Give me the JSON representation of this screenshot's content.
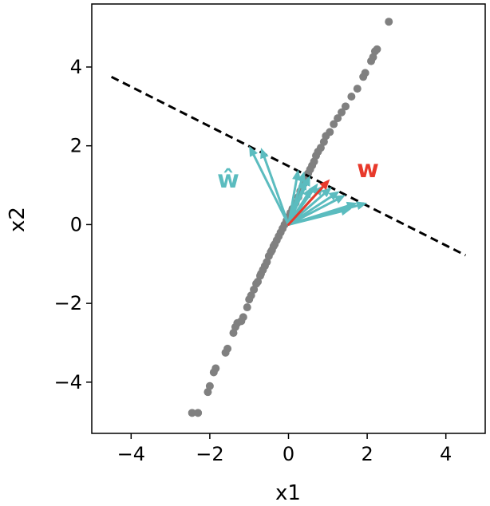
{
  "chart_data": {
    "type": "scatter",
    "xlabel": "x1",
    "ylabel": "x2",
    "xlim": [
      -5,
      5
    ],
    "ylim": [
      -5.3,
      5.6
    ],
    "xticks": [
      -4,
      -2,
      0,
      2,
      4
    ],
    "yticks": [
      -4,
      -2,
      0,
      2,
      4
    ],
    "xtick_labels": [
      "−4",
      "−2",
      "0",
      "2",
      "4"
    ],
    "ytick_labels": [
      "−4",
      "−2",
      "0",
      "2",
      "4"
    ],
    "grid": false,
    "colors": {
      "points": "#808080",
      "w_hat": "#5bbcbf",
      "w": "#e8392b",
      "line": "#000000"
    },
    "annotations": {
      "w_hat": "ŵ",
      "w": "w"
    },
    "points": [
      [
        -2.45,
        -4.78
      ],
      [
        -2.3,
        -4.78
      ],
      [
        -2.05,
        -4.25
      ],
      [
        -2.0,
        -4.1
      ],
      [
        -1.9,
        -3.75
      ],
      [
        -1.85,
        -3.65
      ],
      [
        -1.6,
        -3.25
      ],
      [
        -1.55,
        -3.15
      ],
      [
        -1.4,
        -2.75
      ],
      [
        -1.35,
        -2.6
      ],
      [
        -1.3,
        -2.5
      ],
      [
        -1.2,
        -2.45
      ],
      [
        -1.15,
        -2.35
      ],
      [
        -1.05,
        -2.1
      ],
      [
        -1.0,
        -1.9
      ],
      [
        -0.95,
        -1.8
      ],
      [
        -0.88,
        -1.65
      ],
      [
        -0.82,
        -1.5
      ],
      [
        -0.78,
        -1.45
      ],
      [
        -0.72,
        -1.3
      ],
      [
        -0.7,
        -1.25
      ],
      [
        -0.65,
        -1.15
      ],
      [
        -0.6,
        -1.05
      ],
      [
        -0.55,
        -0.95
      ],
      [
        -0.5,
        -0.8
      ],
      [
        -0.45,
        -0.7
      ],
      [
        -0.42,
        -0.65
      ],
      [
        -0.38,
        -0.55
      ],
      [
        -0.35,
        -0.5
      ],
      [
        -0.3,
        -0.4
      ],
      [
        -0.25,
        -0.3
      ],
      [
        -0.2,
        -0.2
      ],
      [
        -0.15,
        -0.1
      ],
      [
        -0.1,
        0.0
      ],
      [
        -0.05,
        0.1
      ],
      [
        0.0,
        0.2
      ],
      [
        0.05,
        0.3
      ],
      [
        0.1,
        0.4
      ],
      [
        0.18,
        0.55
      ],
      [
        0.25,
        0.7
      ],
      [
        0.3,
        0.85
      ],
      [
        0.35,
        0.95
      ],
      [
        0.4,
        1.05
      ],
      [
        0.45,
        1.15
      ],
      [
        0.5,
        1.3
      ],
      [
        0.55,
        1.4
      ],
      [
        0.6,
        1.5
      ],
      [
        0.65,
        1.6
      ],
      [
        0.7,
        1.75
      ],
      [
        0.75,
        1.85
      ],
      [
        0.82,
        1.95
      ],
      [
        0.9,
        2.1
      ],
      [
        0.95,
        2.25
      ],
      [
        1.05,
        2.35
      ],
      [
        1.15,
        2.55
      ],
      [
        1.25,
        2.7
      ],
      [
        1.35,
        2.85
      ],
      [
        1.45,
        3.0
      ],
      [
        1.6,
        3.25
      ],
      [
        1.75,
        3.45
      ],
      [
        1.9,
        3.75
      ],
      [
        1.95,
        3.85
      ],
      [
        2.1,
        4.15
      ],
      [
        2.15,
        4.25
      ],
      [
        2.2,
        4.4
      ],
      [
        2.25,
        4.45
      ],
      [
        2.55,
        5.15
      ]
    ],
    "dashed_line": [
      [
        -4.5,
        3.75
      ],
      [
        4.5,
        -0.78
      ]
    ],
    "w_hat_vectors": [
      [
        -1.0,
        2.0
      ],
      [
        -0.7,
        1.95
      ],
      [
        0.25,
        1.4
      ],
      [
        0.4,
        1.35
      ],
      [
        0.55,
        1.25
      ],
      [
        0.75,
        1.05
      ],
      [
        0.9,
        1.0
      ],
      [
        1.1,
        0.95
      ],
      [
        1.3,
        0.85
      ],
      [
        1.45,
        0.75
      ],
      [
        1.75,
        0.55
      ],
      [
        2.0,
        0.55
      ],
      [
        0.6,
        0.95
      ],
      [
        0.45,
        1.15
      ],
      [
        1.6,
        0.4
      ]
    ],
    "w_vector": [
      1.05,
      1.15
    ]
  }
}
